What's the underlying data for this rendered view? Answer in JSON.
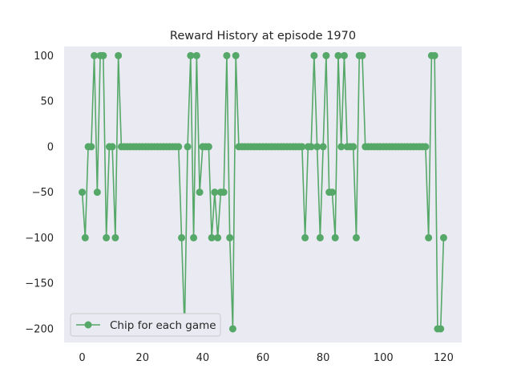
{
  "chart_data": {
    "type": "line",
    "title": "Reward History at episode 1970",
    "xlabel": "",
    "ylabel": "",
    "xlim": [
      -6,
      126
    ],
    "ylim": [
      -215,
      110
    ],
    "xticks": [
      0,
      20,
      40,
      60,
      80,
      100,
      120
    ],
    "yticks": [
      100,
      50,
      0,
      -50,
      -100,
      -150,
      -200
    ],
    "grid": false,
    "legend": "lower-left",
    "series": [
      {
        "name": "Chip for each game",
        "color": "#55a868",
        "marker": "circle",
        "values": [
          -50,
          -100,
          0,
          0,
          100,
          -50,
          100,
          100,
          -100,
          0,
          0,
          -100,
          100,
          0,
          0,
          0,
          0,
          0,
          0,
          0,
          0,
          0,
          0,
          0,
          0,
          0,
          0,
          0,
          0,
          0,
          0,
          0,
          0,
          -100,
          -200,
          0,
          100,
          -100,
          100,
          -50,
          0,
          0,
          0,
          -100,
          -50,
          -100,
          -50,
          -50,
          100,
          -100,
          -200,
          100,
          0,
          0,
          0,
          0,
          0,
          0,
          0,
          0,
          0,
          0,
          0,
          0,
          0,
          0,
          0,
          0,
          0,
          0,
          0,
          0,
          0,
          0,
          -100,
          0,
          0,
          100,
          0,
          -100,
          0,
          100,
          -50,
          -50,
          -100,
          100,
          0,
          100,
          0,
          0,
          0,
          -100,
          100,
          100,
          0,
          0,
          0,
          0,
          0,
          0,
          0,
          0,
          0,
          0,
          0,
          0,
          0,
          0,
          0,
          0,
          0,
          0,
          0,
          0,
          0,
          -100,
          100,
          100,
          -200,
          -200,
          -100
        ]
      }
    ]
  }
}
